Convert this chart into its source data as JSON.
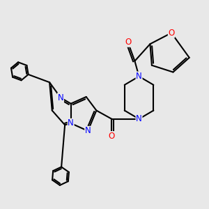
{
  "background_color": "#e8e8e8",
  "bond_color": "#000000",
  "bond_width": 1.5,
  "atom_colors": {
    "N": "#0000ff",
    "O": "#ff0000"
  },
  "figsize": [
    3.0,
    3.0
  ],
  "dpi": 100
}
